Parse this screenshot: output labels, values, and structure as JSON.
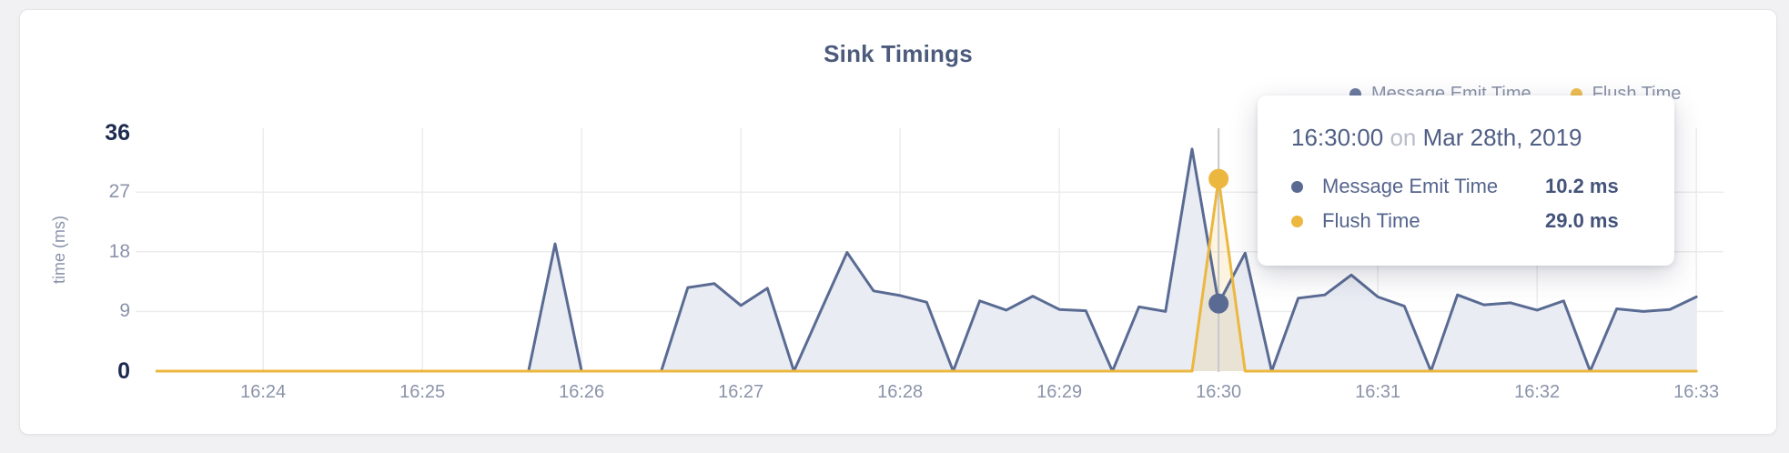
{
  "card": {
    "background": "#ffffff",
    "page_background": "#f1f1f3"
  },
  "tooltip": {
    "time": "16:30:00",
    "conjunction": "on",
    "date": "Mar 28th, 2019",
    "rows": [
      {
        "label": "Message Emit Time",
        "value": "10.2 ms",
        "color": "#5a6b93"
      },
      {
        "label": "Flush Time",
        "value": "29.0 ms",
        "color": "#ecb73e"
      }
    ]
  },
  "chart_data": {
    "type": "area",
    "title": "Sink Timings",
    "ylabel": "time (ms)",
    "xlabel": "",
    "ylim": [
      0,
      36
    ],
    "y_ticks": [
      0,
      9,
      18,
      27,
      36
    ],
    "grid": true,
    "legend_position": "top-right",
    "x_tick_labels": [
      "16:24",
      "16:25",
      "16:26",
      "16:27",
      "16:28",
      "16:29",
      "16:30",
      "16:31",
      "16:32",
      "16:33"
    ],
    "x": [
      "16:23:20",
      "16:23:30",
      "16:23:40",
      "16:23:50",
      "16:24:00",
      "16:24:10",
      "16:24:20",
      "16:24:30",
      "16:24:40",
      "16:24:50",
      "16:25:00",
      "16:25:10",
      "16:25:20",
      "16:25:30",
      "16:25:40",
      "16:25:50",
      "16:26:00",
      "16:26:10",
      "16:26:20",
      "16:26:30",
      "16:26:40",
      "16:26:50",
      "16:27:00",
      "16:27:10",
      "16:27:20",
      "16:27:30",
      "16:27:40",
      "16:27:50",
      "16:28:00",
      "16:28:10",
      "16:28:20",
      "16:28:30",
      "16:28:40",
      "16:28:50",
      "16:29:00",
      "16:29:10",
      "16:29:20",
      "16:29:30",
      "16:29:40",
      "16:29:50",
      "16:30:00",
      "16:30:10",
      "16:30:20",
      "16:30:30",
      "16:30:40",
      "16:30:50",
      "16:31:00",
      "16:31:10",
      "16:31:20",
      "16:31:30",
      "16:31:40",
      "16:31:50",
      "16:32:00",
      "16:32:10",
      "16:32:20",
      "16:32:30",
      "16:32:40",
      "16:32:50",
      "16:33:00"
    ],
    "series": [
      {
        "name": "Message Emit Time",
        "color": "#5a6b93",
        "fill": "#e9ecf3",
        "values": [
          0,
          0,
          0,
          0,
          0,
          0,
          0,
          0,
          0,
          0,
          0,
          0,
          0,
          0,
          0,
          19.2,
          0,
          0,
          0,
          0,
          12.6,
          13.2,
          9.9,
          12.5,
          0,
          9,
          17.9,
          12.1,
          11.4,
          10.4,
          0,
          10.6,
          9.2,
          11.3,
          9.3,
          9.1,
          0,
          9.7,
          9,
          33.5,
          10.2,
          17.8,
          0,
          11,
          11.5,
          14.5,
          11.2,
          9.8,
          0,
          11.5,
          10,
          10.3,
          9.2,
          10.6,
          0,
          9.4,
          9,
          9.3,
          11.2
        ]
      },
      {
        "name": "Flush Time",
        "color": "#ecb73e",
        "fill": "rgba(236,183,62,0.16)",
        "values": [
          0,
          0,
          0,
          0,
          0,
          0,
          0,
          0,
          0,
          0,
          0,
          0,
          0,
          0,
          0,
          0,
          0,
          0,
          0,
          0,
          0,
          0,
          0,
          0,
          0,
          0,
          0,
          0,
          0,
          0,
          0,
          0,
          0,
          0,
          0,
          0,
          0,
          0,
          0,
          0,
          29,
          0,
          0,
          0,
          0,
          0,
          0,
          0,
          0,
          0,
          0,
          0,
          0,
          0,
          0,
          0,
          0,
          0,
          0
        ]
      }
    ],
    "hover": {
      "time": "16:30:00",
      "values": [
        10.2,
        29.0
      ],
      "line_color": "#c8c8c8"
    },
    "grid_color": "#ececec",
    "tick_color_minor": "#8a93a9",
    "tick_color_major": "#1e2b50"
  }
}
